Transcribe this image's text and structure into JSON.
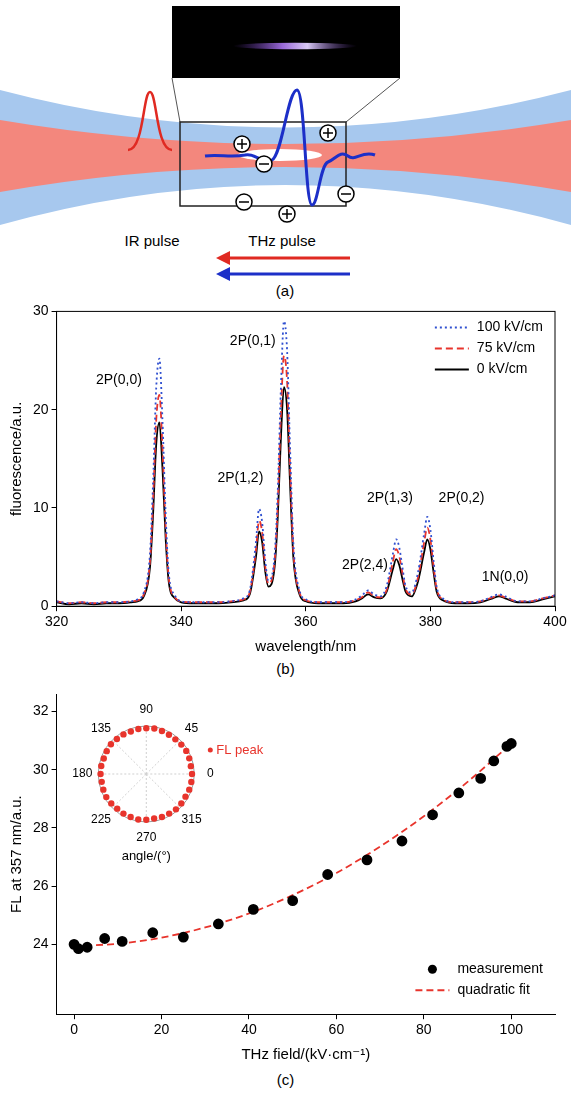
{
  "diagram": {
    "panel_label": "(a)",
    "ir_label": "IR pulse",
    "thz_label": "THz pulse"
  },
  "chart_data": [
    {
      "type": "line",
      "panel_label": "(b)",
      "x_label": "wavelength/nm",
      "y_label": "fluorescence/a.u.",
      "xlim": [
        320,
        400
      ],
      "xticks": [
        320,
        340,
        360,
        380,
        400
      ],
      "ylim": [
        0,
        30
      ],
      "yticks": [
        0,
        10,
        20,
        30
      ],
      "grid": false,
      "legend": "upper right",
      "x": [
        320,
        322,
        324,
        326,
        328,
        330,
        332,
        333,
        334,
        335,
        335.5,
        336,
        336.5,
        337,
        337.5,
        338,
        339,
        340,
        342,
        344,
        346,
        348,
        350,
        351,
        352,
        352.5,
        353,
        353.5,
        354,
        355,
        355.5,
        356,
        356.5,
        357,
        357.5,
        358,
        359,
        360,
        362,
        364,
        366,
        368,
        369,
        370,
        371,
        372,
        373,
        374,
        374.5,
        375,
        375.5,
        376,
        377,
        378,
        379,
        379.5,
        380,
        380.5,
        381,
        382,
        384,
        386,
        388,
        390,
        391,
        392,
        394,
        396,
        398,
        400
      ],
      "series": [
        {
          "name": "100 kV/cm",
          "color": "#3050d0",
          "line_style": "dotted",
          "values": [
            0.5,
            0.3,
            0.4,
            0.3,
            0.4,
            0.4,
            0.5,
            0.7,
            1.4,
            5.4,
            12.8,
            22.3,
            25.2,
            18.9,
            9.5,
            3.4,
            1.1,
            0.5,
            0.4,
            0.4,
            0.4,
            0.5,
            0.8,
            1.6,
            6.5,
            9.9,
            8.5,
            4.6,
            2.6,
            5.2,
            11.7,
            22.1,
            29.0,
            26.0,
            15.6,
            6.5,
            1.6,
            0.7,
            0.4,
            0.4,
            0.4,
            0.7,
            1.1,
            1.6,
            1.2,
            1.0,
            2.1,
            5.4,
            6.8,
            6.0,
            4.0,
            2.1,
            1.4,
            3.4,
            7.4,
            9.1,
            7.8,
            4.7,
            2.0,
            0.8,
            0.4,
            0.4,
            0.5,
            1.0,
            1.2,
            1.0,
            0.5,
            0.5,
            0.8,
            1.1
          ]
        },
        {
          "name": "75 kV/cm",
          "color": "#e8342c",
          "line_style": "dashed",
          "values": [
            0.5,
            0.3,
            0.4,
            0.3,
            0.4,
            0.4,
            0.5,
            0.6,
            1.2,
            4.6,
            10.9,
            19.0,
            21.5,
            16.1,
            8.1,
            2.9,
            0.9,
            0.5,
            0.4,
            0.4,
            0.4,
            0.5,
            0.7,
            1.4,
            5.7,
            8.7,
            7.5,
            4.0,
            2.3,
            4.6,
            10.3,
            19.5,
            25.5,
            22.9,
            13.7,
            5.7,
            1.4,
            0.6,
            0.4,
            0.4,
            0.4,
            0.6,
            0.9,
            1.4,
            1.0,
            0.9,
            1.7,
            4.6,
            5.8,
            5.1,
            3.4,
            1.8,
            1.2,
            2.9,
            6.5,
            8.0,
            6.8,
            4.1,
            1.8,
            0.7,
            0.4,
            0.4,
            0.5,
            0.9,
            1.1,
            0.9,
            0.5,
            0.5,
            0.8,
            1.1
          ]
        },
        {
          "name": "0 kV/cm",
          "color": "#000000",
          "line_style": "solid",
          "values": [
            0.4,
            0.2,
            0.3,
            0.2,
            0.3,
            0.3,
            0.4,
            0.5,
            1.0,
            4.0,
            9.5,
            16.5,
            18.7,
            14.0,
            7.0,
            2.5,
            0.8,
            0.4,
            0.3,
            0.3,
            0.3,
            0.4,
            0.6,
            1.2,
            5.0,
            7.6,
            6.5,
            3.5,
            2.0,
            4.0,
            9.0,
            17.0,
            22.3,
            20.0,
            12.0,
            5.0,
            1.2,
            0.5,
            0.3,
            0.3,
            0.3,
            0.5,
            0.8,
            1.2,
            0.9,
            0.8,
            1.5,
            3.8,
            4.8,
            4.2,
            2.8,
            1.5,
            1.0,
            2.5,
            5.5,
            6.8,
            5.8,
            3.5,
            1.5,
            0.6,
            0.3,
            0.3,
            0.4,
            0.8,
            1.0,
            0.8,
            0.4,
            0.4,
            0.7,
            1.0
          ]
        }
      ],
      "annotations": [
        {
          "text": "2P(0,0)",
          "x": 330,
          "y": 23
        },
        {
          "text": "2P(1,2)",
          "x": 349.5,
          "y": 13
        },
        {
          "text": "2P(0,1)",
          "x": 351.5,
          "y": 27
        },
        {
          "text": "2P(2,4)",
          "x": 369.5,
          "y": 4.2
        },
        {
          "text": "2P(1,3)",
          "x": 373.5,
          "y": 11
        },
        {
          "text": "2P(0,2)",
          "x": 385,
          "y": 11
        },
        {
          "text": "1N(0,0)",
          "x": 392,
          "y": 3
        }
      ]
    },
    {
      "type": "scatter",
      "panel_label": "(c)",
      "x_label": "THz field/(kV·cm⁻¹)",
      "y_label": "FL at 357 nm/a.u.",
      "xlim": [
        -4,
        110
      ],
      "xticks": [
        0,
        20,
        40,
        60,
        80,
        100
      ],
      "ylim": [
        21.6,
        32.6
      ],
      "yticks": [
        24,
        26,
        28,
        30,
        32
      ],
      "grid": false,
      "legend": "lower right",
      "series": [
        {
          "name": "measurement",
          "type": "scatter",
          "color": "#000000",
          "marker": "circle",
          "x": [
            0,
            1,
            3,
            7,
            11,
            18,
            25,
            33,
            41,
            50,
            58,
            67,
            75,
            82,
            88,
            93,
            96,
            99,
            100
          ],
          "values": [
            24.0,
            23.85,
            23.9,
            24.2,
            24.1,
            24.4,
            24.25,
            24.7,
            25.2,
            25.5,
            26.4,
            26.9,
            27.55,
            28.45,
            29.2,
            29.7,
            30.3,
            30.8,
            30.9
          ]
        },
        {
          "name": "quadratic fit",
          "type": "line",
          "color": "#e8342c",
          "line_style": "dashed",
          "x": [
            0,
            10,
            20,
            30,
            40,
            50,
            60,
            70,
            80,
            90,
            100
          ],
          "values": [
            23.95,
            24.02,
            24.23,
            24.58,
            25.06,
            25.69,
            26.45,
            27.36,
            28.4,
            29.58,
            30.9
          ]
        }
      ],
      "inset": {
        "type": "polar",
        "theta_label": "angle/(°)",
        "theta_ticks": [
          0,
          45,
          90,
          135,
          180,
          225,
          270,
          315
        ],
        "rlim": [
          0,
          1.05
        ],
        "series": [
          {
            "name": "FL peak",
            "color": "#e8342c",
            "marker": "circle",
            "theta": [
              0,
              10,
              20,
              30,
              40,
              50,
              60,
              70,
              80,
              90,
              100,
              110,
              120,
              130,
              140,
              150,
              160,
              170,
              180,
              190,
              200,
              210,
              220,
              230,
              240,
              250,
              260,
              270,
              280,
              290,
              300,
              310,
              320,
              330,
              340,
              350
            ],
            "values": [
              1.0,
              0.99,
              1.0,
              1.01,
              1.0,
              0.99,
              0.99,
              1.0,
              1.01,
              1.0,
              1.0,
              0.99,
              1.0,
              1.0,
              1.01,
              1.0,
              0.99,
              1.0,
              1.0,
              0.99,
              1.0,
              1.01,
              1.0,
              0.99,
              1.0,
              1.0,
              1.01,
              1.0,
              0.99,
              1.0,
              1.0,
              1.01,
              1.0,
              0.99,
              1.0,
              1.0
            ]
          }
        ]
      }
    }
  ]
}
